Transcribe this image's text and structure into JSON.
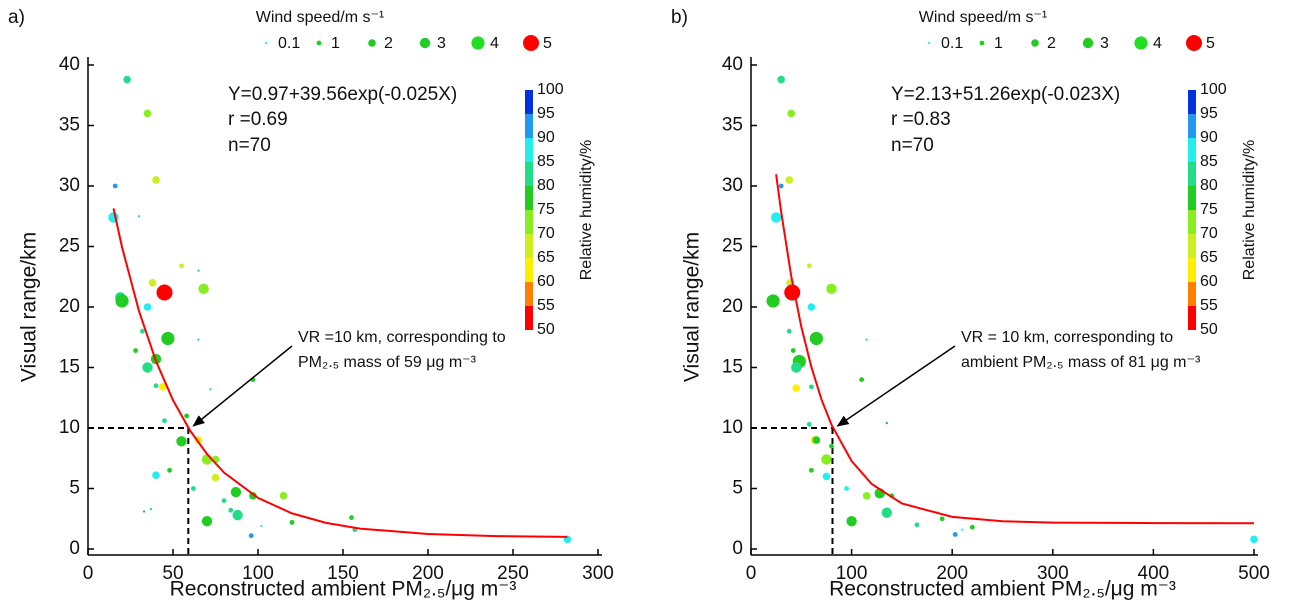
{
  "chart_data": [
    {
      "type": "scatter",
      "panel_label": "a)",
      "xlabel": "Reconstructed ambient PM₂.₅/μg m⁻³",
      "ylabel": "Visual range/km",
      "xlim": [
        0,
        300
      ],
      "xticks": [
        0,
        50,
        100,
        150,
        200,
        250,
        300
      ],
      "ylim": [
        0,
        40
      ],
      "yticks": [
        0,
        5,
        10,
        15,
        20,
        25,
        30,
        35,
        40
      ],
      "equation": "Y=0.97+39.56exp(-0.025X)",
      "r_text": "r =0.69",
      "n_text": "n=70",
      "annotation": [
        "VR =10 km, corresponding to",
        "PM₂.₅ mass of 59 μg m⁻³"
      ],
      "reference": {
        "x": 59,
        "y": 10
      },
      "fit": {
        "color": "#ff0000",
        "x": [
          15,
          20,
          30,
          40,
          50,
          60,
          70,
          80,
          100,
          120,
          140,
          160,
          200,
          240,
          282
        ],
        "y": [
          28.15,
          24.96,
          19.66,
          15.52,
          12.3,
          9.8,
          7.85,
          6.32,
          4.22,
          2.94,
          2.16,
          1.69,
          1.24,
          1.07,
          1.0
        ]
      },
      "points": {
        "x": [
          23,
          35,
          40,
          16,
          15,
          30,
          38,
          45,
          19,
          20,
          35,
          55,
          68,
          65,
          40,
          35,
          47,
          32,
          28,
          65,
          44,
          40,
          45,
          97,
          55,
          58,
          65,
          70,
          75,
          75,
          62,
          40,
          48,
          33,
          37,
          70,
          80,
          87,
          88,
          97,
          96,
          102,
          115,
          120,
          155,
          157,
          282,
          84,
          72
        ],
        "y": [
          38.8,
          36,
          30.5,
          30,
          27.4,
          27.5,
          22,
          21.2,
          20.8,
          20.5,
          20,
          23.4,
          21.5,
          23,
          15.7,
          15,
          17.4,
          18,
          16.4,
          17.3,
          13.4,
          13.5,
          10.6,
          14,
          8.9,
          11,
          9,
          7.4,
          7.4,
          5.9,
          5,
          6.1,
          6.5,
          3.1,
          3.3,
          2.3,
          4,
          4.7,
          2.8,
          4.4,
          1.1,
          1.9,
          4.4,
          2.2,
          2.6,
          1.6,
          0.8,
          3.2,
          13.2
        ],
        "wind": [
          2,
          2,
          2,
          1,
          3,
          0.1,
          2,
          5,
          3,
          4,
          2,
          1,
          3,
          0.1,
          3,
          3,
          4,
          1,
          1,
          0.1,
          2,
          1,
          1,
          1,
          3,
          1,
          2,
          3,
          2,
          2,
          1,
          2,
          1,
          0.1,
          0.1,
          3,
          1,
          3,
          3,
          2,
          1,
          0.1,
          2,
          1,
          1,
          1,
          2,
          1,
          0.1
        ],
        "rh": [
          80,
          70,
          65,
          92,
          87,
          80,
          65,
          50,
          80,
          75,
          87,
          68,
          72,
          80,
          78,
          80,
          78,
          80,
          75,
          80,
          60,
          80,
          80,
          75,
          78,
          75,
          60,
          72,
          70,
          65,
          80,
          87,
          78,
          92,
          80,
          75,
          80,
          78,
          80,
          75,
          92,
          85,
          70,
          78,
          75,
          80,
          87,
          80,
          80
        ]
      },
      "size_legend": {
        "title": "Wind speed/m s⁻¹",
        "values": [
          0.1,
          1,
          2,
          3,
          4,
          5
        ],
        "colors": [
          "#22eeee",
          "#22cc22",
          "#22cc22",
          "#22cc22",
          "#22dd22",
          "#ff0000"
        ]
      },
      "colorbar": {
        "label": "Relative humidity/%",
        "ticks": [
          50,
          55,
          60,
          65,
          70,
          75,
          80,
          85,
          90,
          95,
          100
        ],
        "colors": [
          "#ff0000",
          "#ff7f00",
          "#ffee00",
          "#ccee22",
          "#88ee22",
          "#22cc22",
          "#22dd88",
          "#22eeee",
          "#2299ee",
          "#0033dd"
        ]
      }
    },
    {
      "type": "scatter",
      "panel_label": "b)",
      "xlabel": "Reconstructed ambient PM₂.₅/μg m⁻³",
      "ylabel": "Visual range/km",
      "xlim": [
        0,
        500
      ],
      "xticks": [
        0,
        100,
        200,
        300,
        400,
        500
      ],
      "ylim": [
        0,
        40
      ],
      "yticks": [
        0,
        5,
        10,
        15,
        20,
        25,
        30,
        35,
        40
      ],
      "equation": "Y=2.13+51.26exp(-0.023X)",
      "r_text": "r =0.83",
      "n_text": "n=70",
      "annotation": [
        "VR = 10 km, corresponding to",
        "ambient PM₂.₅ mass of 81 μg m⁻³"
      ],
      "reference": {
        "x": 81,
        "y": 10
      },
      "fit": {
        "color": "#ff0000",
        "x": [
          25,
          30,
          40,
          50,
          60,
          70,
          80,
          100,
          120,
          150,
          200,
          250,
          300,
          400,
          500
        ],
        "y": [
          30.97,
          27.84,
          22.56,
          18.36,
          15.03,
          12.38,
          10.27,
          7.27,
          5.37,
          3.76,
          2.65,
          2.29,
          2.18,
          2.14,
          2.13
        ]
      },
      "points": {
        "x": [
          30,
          40,
          38,
          30,
          25,
          39,
          41,
          22,
          60,
          58,
          80,
          38,
          65,
          48,
          45,
          42,
          115,
          45,
          60,
          110,
          58,
          63,
          65,
          75,
          80,
          75,
          95,
          60,
          100,
          115,
          128,
          135,
          140,
          165,
          185,
          190,
          203,
          210,
          220,
          135,
          500
        ],
        "y": [
          38.8,
          36,
          30.5,
          30,
          27.4,
          22,
          21.2,
          20.5,
          20,
          23.4,
          21.5,
          18,
          17.4,
          15.5,
          15,
          16.4,
          17.3,
          13.3,
          13.4,
          14,
          10.3,
          9,
          9,
          7.4,
          8.5,
          6,
          5,
          6.5,
          2.3,
          4.4,
          4.6,
          3,
          4.4,
          2,
          3,
          2.5,
          1.2,
          1.6,
          1.8,
          10.4,
          0.8
        ],
        "wind": [
          2,
          2,
          2,
          1,
          3,
          2,
          5,
          4,
          2,
          1,
          3,
          1,
          4,
          4,
          3,
          1,
          0.1,
          2,
          1,
          1,
          1,
          2,
          2,
          3,
          1,
          2,
          1,
          1,
          3,
          2,
          3,
          3,
          1,
          1,
          0.1,
          1,
          1,
          0.1,
          1,
          0.1,
          2
        ],
        "rh": [
          80,
          70,
          65,
          92,
          87,
          65,
          50,
          75,
          87,
          68,
          72,
          80,
          78,
          78,
          80,
          75,
          80,
          60,
          80,
          75,
          80,
          60,
          78,
          72,
          78,
          87,
          87,
          78,
          75,
          70,
          78,
          80,
          75,
          80,
          80,
          75,
          92,
          85,
          78,
          92,
          87
        ]
      },
      "size_legend": {
        "title": "Wind speed/m s⁻¹",
        "values": [
          0.1,
          1,
          2,
          3,
          4,
          5
        ],
        "colors": [
          "#22eeee",
          "#22cc22",
          "#22cc22",
          "#22cc22",
          "#22dd22",
          "#ff0000"
        ]
      },
      "colorbar": {
        "label": "Relative humidity/%",
        "ticks": [
          50,
          55,
          60,
          65,
          70,
          75,
          80,
          85,
          90,
          95,
          100
        ],
        "colors": [
          "#ff0000",
          "#ff7f00",
          "#ffee00",
          "#ccee22",
          "#88ee22",
          "#22cc22",
          "#22dd88",
          "#22eeee",
          "#2299ee",
          "#0033dd"
        ]
      }
    }
  ]
}
